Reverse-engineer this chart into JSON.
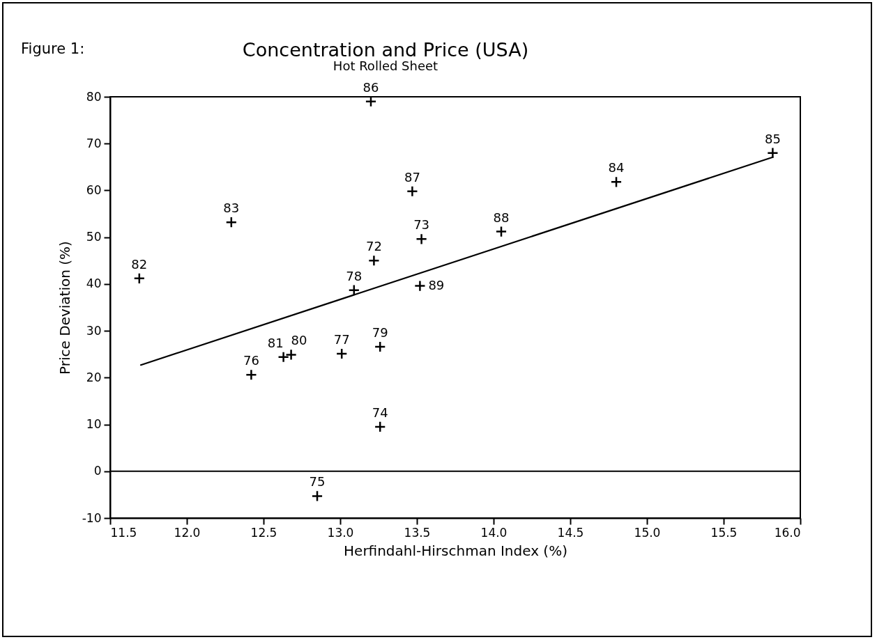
{
  "chart_data": {
    "type": "scatter",
    "title": "Concentration and Price (USA)",
    "subtitle": "Hot Rolled Sheet",
    "xlabel": "Herfindahl-Hirschman Index (%)",
    "ylabel": "Price Deviation (%)",
    "marker": "cross",
    "xlim": [
      11.5,
      16.0
    ],
    "xticks": [
      11.5,
      {
        "value": 12,
        "label": "12.0"
      },
      12.5,
      {
        "value": 13,
        "label": "13.0"
      },
      13.5,
      {
        "value": 14,
        "label": "14.0"
      },
      14.5,
      {
        "value": 15,
        "label": "15.0"
      },
      15.5,
      {
        "value": 16,
        "label": "16.0"
      }
    ],
    "ylim": [
      -10,
      80
    ],
    "yticks": [
      -10,
      0,
      10,
      20,
      30,
      40,
      50,
      60,
      70,
      80
    ],
    "ref_lines": [
      {
        "axis": "y",
        "value": 0,
        "color": "#000000"
      }
    ],
    "series": [
      {
        "color": "#000000",
        "x": [
          13.22,
          13.53,
          13.26,
          12.85,
          12.42,
          13.01,
          13.09,
          13.26,
          12.68,
          12.63,
          11.69,
          12.29,
          14.8,
          15.82,
          13.2,
          13.47,
          14.05,
          13.52
        ],
        "values": [
          45.0,
          49.6,
          9.5,
          -5.3,
          20.6,
          25.1,
          38.7,
          26.6,
          24.9,
          24.4,
          41.2,
          53.2,
          61.8,
          68.0,
          79.0,
          59.8,
          51.2,
          39.6
        ]
      },
      {
        "type": "line",
        "marker": "none",
        "color": "#000000",
        "x": [
          11.7,
          15.82
        ],
        "values": [
          22.7,
          67.1
        ]
      }
    ],
    "annotations": [
      "Figure 1:",
      {
        "text": "72",
        "x": 13.22,
        "y": 45.0
      },
      {
        "text": "73",
        "x": 13.53,
        "y": 49.6
      },
      {
        "text": "74",
        "x": 13.26,
        "y": 9.5
      },
      {
        "text": "75",
        "x": 12.85,
        "y": -5.3
      },
      {
        "text": "76",
        "x": 12.42,
        "y": 20.6
      },
      {
        "text": "77",
        "x": 13.01,
        "y": 25.1
      },
      {
        "text": "78",
        "x": 13.09,
        "y": 38.7
      },
      {
        "text": "79",
        "x": 13.26,
        "y": 26.6
      },
      {
        "text": "80",
        "x": 12.68,
        "y": 24.9
      },
      {
        "text": "81",
        "x": 12.63,
        "y": 24.4
      },
      {
        "text": "82",
        "x": 11.69,
        "y": 41.2
      },
      {
        "text": "83",
        "x": 12.29,
        "y": 53.2
      },
      {
        "text": "84",
        "x": 14.8,
        "y": 61.8
      },
      {
        "text": "85",
        "x": 15.82,
        "y": 68.0
      },
      {
        "text": "86",
        "x": 13.2,
        "y": 79.0
      },
      {
        "text": "87",
        "x": 13.47,
        "y": 59.8
      },
      {
        "text": "88",
        "x": 14.05,
        "y": 51.2
      },
      {
        "text": "89",
        "x": 13.52,
        "y": 39.6
      }
    ]
  }
}
